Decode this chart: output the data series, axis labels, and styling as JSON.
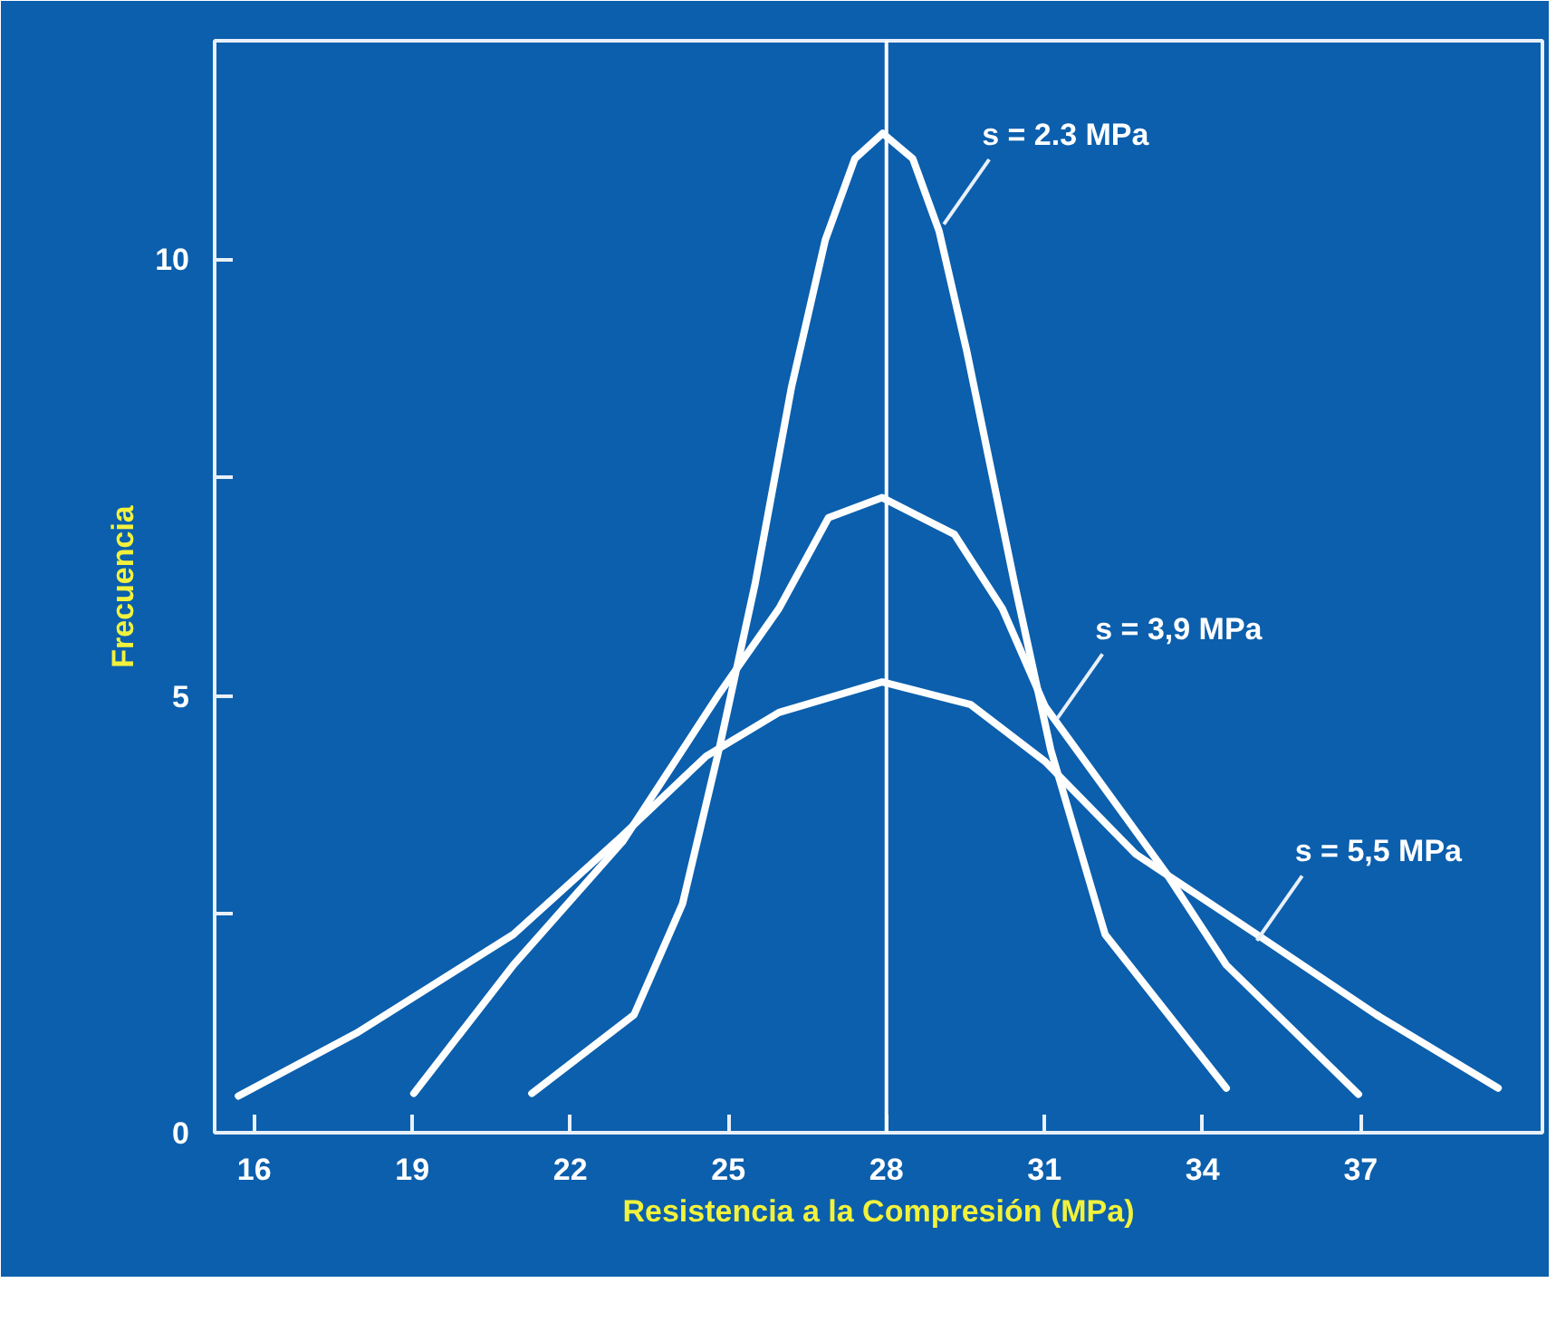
{
  "chart_data": {
    "type": "line",
    "xlabel": "Resistencia a la Compresión (MPa)",
    "ylabel": "Frecuencia",
    "xlim": [
      15.25,
      40.45
    ],
    "ylim": [
      0,
      12.5
    ],
    "xticks": [
      16,
      19,
      22,
      25,
      28,
      31,
      34,
      37
    ],
    "yticks": [
      0,
      {
        "value": 2.5,
        "label": null
      },
      5,
      {
        "value": 7.5,
        "label": null
      },
      10
    ],
    "grid": false,
    "marker": "none",
    "line_style": "solid",
    "series": [
      {
        "color": "#ffffff",
        "x": [
          21.27,
          23.21,
          24.13,
          24.82,
          25.51,
          26.2,
          26.84,
          27.4,
          27.93,
          28.5,
          29.0,
          29.52,
          30.43,
          31.12,
          32.15,
          34.45
        ],
        "values": [
          0.45,
          1.35,
          2.62,
          4.38,
          6.29,
          8.54,
          10.22,
          11.15,
          11.44,
          11.15,
          10.32,
          8.96,
          6.29,
          4.38,
          2.27,
          0.51
        ]
      },
      {
        "color": "#ffffff",
        "x": [
          19.03,
          20.92,
          22.99,
          24.82,
          25.96,
          26.9,
          27.92,
          29.29,
          30.2,
          31.01,
          33.3,
          34.45,
          36.96
        ],
        "values": [
          0.45,
          1.92,
          3.33,
          5.02,
          6.0,
          7.04,
          7.27,
          6.85,
          6.0,
          4.88,
          2.98,
          1.92,
          0.44
        ]
      },
      {
        "color": "#ffffff",
        "x": [
          15.7,
          17.94,
          20.92,
          22.99,
          24.58,
          25.96,
          27.92,
          29.6,
          31.01,
          32.73,
          35.03,
          37.3,
          39.61
        ],
        "values": [
          0.42,
          1.14,
          2.27,
          3.4,
          4.31,
          4.81,
          5.16,
          4.9,
          4.25,
          3.19,
          2.27,
          1.35,
          0.51
        ]
      }
    ],
    "ref_lines": [
      {
        "axis": "x",
        "value": 28,
        "color": "#ffffff"
      }
    ],
    "annotations": [
      {
        "text": "s = 2.3 MPa",
        "x": 29.09,
        "y": 10.4
      },
      {
        "text": "s = 3,9 MPa",
        "x": 31.24,
        "y": 4.74
      },
      {
        "text": "s = 5,5 MPa",
        "x": 35.03,
        "y": 2.2
      }
    ]
  }
}
